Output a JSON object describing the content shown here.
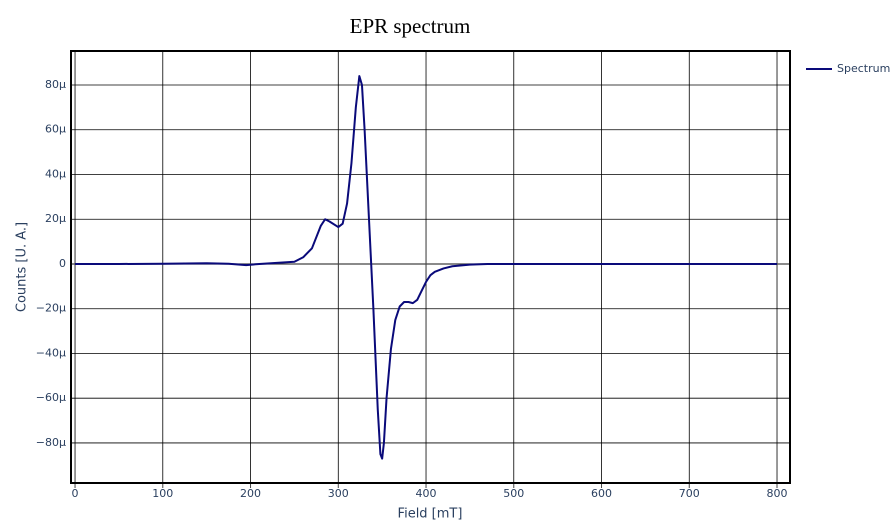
{
  "chart_data": {
    "type": "line",
    "title": "EPR spectrum",
    "x_label": "Field [mT]",
    "y_label": "Counts [U. A.]",
    "x": [
      0,
      50,
      100,
      150,
      175,
      195,
      210,
      230,
      250,
      260,
      270,
      280,
      285,
      290,
      300,
      305,
      310,
      315,
      320,
      324,
      327,
      330,
      335,
      340,
      345,
      348,
      350,
      352,
      355,
      360,
      365,
      370,
      375,
      380,
      385,
      390,
      395,
      400,
      405,
      410,
      420,
      430,
      450,
      470,
      500,
      600,
      700,
      800
    ],
    "series": [
      {
        "name": "Spectrum",
        "color": "#0a0a7a",
        "values": [
          0,
          0,
          1e-07,
          3e-07,
          1e-07,
          -5e-07,
          0,
          5e-07,
          1e-06,
          3e-06,
          7e-06,
          1.7e-05,
          2e-05,
          1.9e-05,
          1.65e-05,
          1.8e-05,
          2.7e-05,
          4.5e-05,
          7e-05,
          8.4e-05,
          8e-05,
          6e-05,
          2e-05,
          -2e-05,
          -6.5e-05,
          -8.5e-05,
          -8.7e-05,
          -8e-05,
          -6e-05,
          -3.8e-05,
          -2.5e-05,
          -1.9e-05,
          -1.7e-05,
          -1.7e-05,
          -1.75e-05,
          -1.6e-05,
          -1.2e-05,
          -8e-06,
          -5e-06,
          -3.5e-06,
          -2e-06,
          -1e-06,
          -3e-07,
          0,
          0,
          0,
          0,
          0
        ]
      }
    ],
    "xlim": [
      -4.6,
      814.8
    ],
    "ylim": [
      -9.79e-05,
      9.52e-05
    ],
    "xticks": [
      0,
      100,
      200,
      300,
      400,
      500,
      600,
      700,
      800
    ],
    "yticks": [
      {
        "value": -8e-05,
        "label": "−80µ"
      },
      {
        "value": -6e-05,
        "label": "−60µ"
      },
      {
        "value": -4e-05,
        "label": "−40µ"
      },
      {
        "value": -2e-05,
        "label": "−20µ"
      },
      0,
      {
        "value": 2e-05,
        "label": "20µ"
      },
      {
        "value": 4e-05,
        "label": "40µ"
      },
      {
        "value": 6e-05,
        "label": "60µ"
      },
      {
        "value": 8e-05,
        "label": "80µ"
      }
    ],
    "grid": true,
    "legend": "right"
  }
}
